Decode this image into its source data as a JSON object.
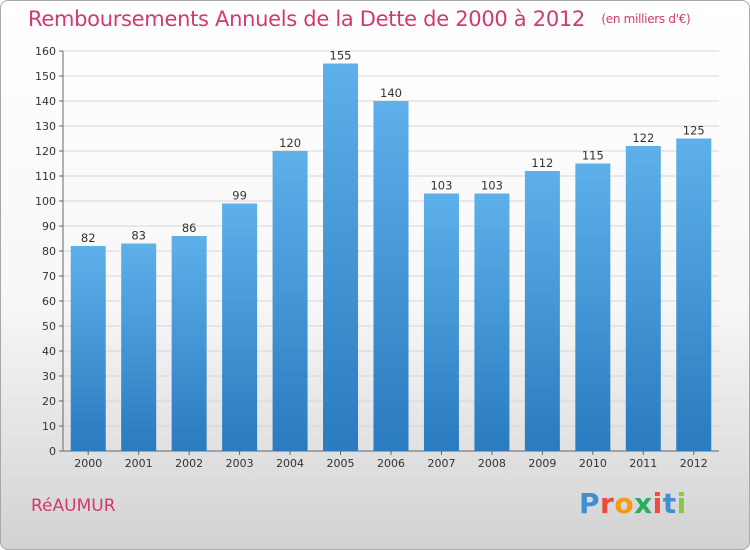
{
  "title": "Remboursements Annuels de la Dette de 2000 à 2012",
  "subtitle": "(en milliers d'€)",
  "commune": "RéAUMUR",
  "logo": {
    "letters": [
      "P",
      "r",
      "o",
      "x",
      "i",
      "t",
      "i"
    ],
    "colors": [
      "#3f8fd6",
      "#e74c3c",
      "#f39c12",
      "#27ae60",
      "#e74c3c",
      "#3f8fd6",
      "#8dc63f"
    ]
  },
  "colors": {
    "title": "#d23a6f",
    "bar_top": "#5eb0ea",
    "bar_bottom": "#2a7bbf",
    "grid": "#d6d6d6"
  },
  "chart_data": {
    "type": "bar",
    "categories": [
      "2000",
      "2001",
      "2002",
      "2003",
      "2004",
      "2005",
      "2006",
      "2007",
      "2008",
      "2009",
      "2010",
      "2011",
      "2012"
    ],
    "values": [
      82,
      83,
      86,
      99,
      120,
      155,
      140,
      103,
      103,
      112,
      115,
      122,
      125
    ],
    "data_labels": [
      "82",
      "83",
      "86",
      "99",
      "120",
      "155",
      "140",
      "103",
      "103",
      "112",
      "115",
      "122",
      "125"
    ],
    "ylim": [
      0,
      160
    ],
    "yticks": [
      0,
      10,
      20,
      30,
      40,
      50,
      60,
      70,
      80,
      90,
      100,
      110,
      120,
      130,
      140,
      150,
      160
    ],
    "grid": true,
    "legend": false
  }
}
